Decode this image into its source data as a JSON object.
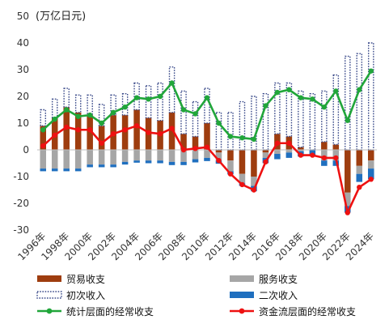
{
  "chart_data": {
    "type": "bar",
    "ylabel": "(万亿日元)",
    "ylim": [
      -30,
      50
    ],
    "yticks": [
      -30,
      -20,
      -10,
      0,
      10,
      20,
      30,
      40,
      50
    ],
    "grid": false,
    "legend_position": "bottom",
    "categories": [
      "1996年",
      "1997年",
      "1998年",
      "1999年",
      "2000年",
      "2001年",
      "2002年",
      "2003年",
      "2004年",
      "2005年",
      "2006年",
      "2007年",
      "2008年",
      "2009年",
      "2010年",
      "2011年",
      "2012年",
      "2013年",
      "2014年",
      "2015年",
      "2016年",
      "2017年",
      "2018年",
      "2019年",
      "2020年",
      "2021年",
      "2022年",
      "2023年",
      "2024年"
    ],
    "category_labels_shown": [
      "1996年",
      "1998年",
      "2000年",
      "2002年",
      "2004年",
      "2006年",
      "2008年",
      "2010年",
      "2012年",
      "2014年",
      "2016年",
      "2018年",
      "2020年",
      "2022年",
      "2024年"
    ],
    "series": [
      {
        "name": "贸易收支",
        "kind": "bar",
        "color": "#9e3d0f",
        "values": [
          9,
          12,
          16,
          14,
          13,
          9,
          13,
          13,
          15,
          12,
          11,
          14,
          6,
          5,
          10,
          -1,
          -4,
          -9,
          -10,
          -1,
          6,
          5,
          1,
          0,
          3,
          2,
          -16,
          -6,
          -4
        ]
      },
      {
        "name": "服务收支",
        "kind": "bar",
        "color": "#a6a6a6",
        "values": [
          -7,
          -7,
          -7,
          -7,
          -5.5,
          -5.5,
          -5.5,
          -4.5,
          -4,
          -4,
          -4,
          -4.5,
          -4.5,
          -3.5,
          -3,
          -3,
          -4,
          -3.5,
          -3.5,
          -2,
          -1.5,
          -1,
          -0.5,
          0,
          -4,
          -4,
          -5,
          -3,
          -3
        ]
      },
      {
        "name": "初次收入",
        "kind": "bar",
        "color": "#ffffff",
        "stroke": "#3a4a8a",
        "values": [
          6,
          7,
          7,
          6.5,
          7.5,
          8,
          7.5,
          8,
          10,
          12,
          14,
          17,
          16,
          13,
          13,
          14,
          14,
          18,
          20,
          21,
          19,
          20,
          21,
          21,
          19,
          26,
          35,
          36,
          40
        ]
      },
      {
        "name": "二次收入",
        "kind": "bar",
        "color": "#1f6fbf",
        "values": [
          -1,
          -1,
          -1,
          -1,
          -1,
          -1,
          -1,
          -1,
          -0.8,
          -1,
          -1,
          -1.2,
          -1.2,
          -1.2,
          -1.2,
          -1.2,
          -1.2,
          -1,
          -2,
          -2,
          -2,
          -2,
          -2,
          -2,
          -2,
          -2,
          -2.5,
          -3,
          -4
        ]
      },
      {
        "name": "统计层面的经常收支",
        "kind": "line",
        "color": "#21a63a",
        "values": [
          7.5,
          11.5,
          15,
          12.5,
          13,
          10,
          14,
          16,
          19.5,
          19,
          20,
          25,
          15,
          13.5,
          19.5,
          10,
          5,
          4.5,
          4,
          16.5,
          21.5,
          22.5,
          19.5,
          19,
          16,
          22,
          11,
          22.5,
          29.5
        ]
      },
      {
        "name": "资金流层面的经常收支",
        "kind": "line",
        "color": "#ee1111",
        "values": [
          1.5,
          5.5,
          8.5,
          7.5,
          7.5,
          2.5,
          6,
          7.5,
          9,
          6.5,
          6,
          8,
          0,
          0.5,
          1,
          -4,
          -9,
          -13,
          -15,
          -4.5,
          2.5,
          2.5,
          -2,
          -2,
          -3,
          -3,
          -23.5,
          -14,
          -11
        ]
      }
    ]
  }
}
